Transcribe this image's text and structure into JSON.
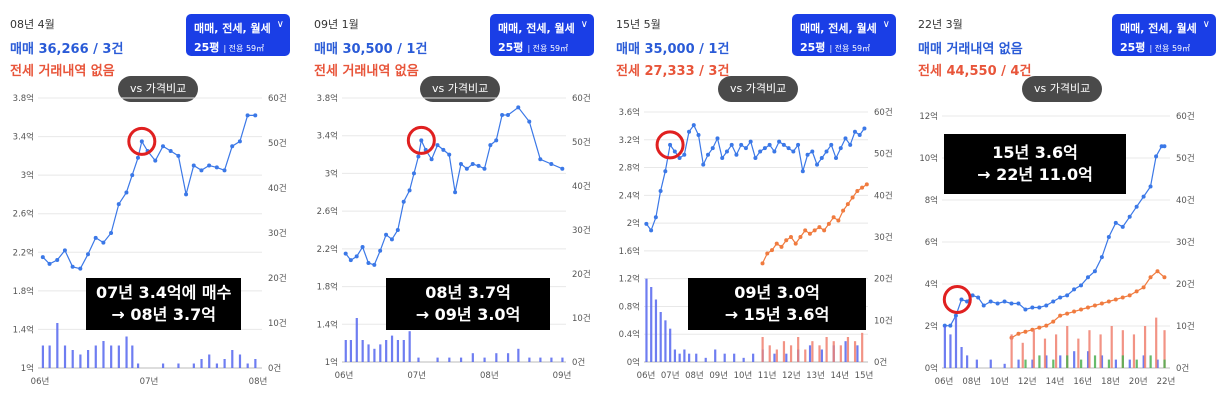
{
  "colors": {
    "sale": "#3b78e7",
    "lease": "#f07b3f",
    "select_bg": "#1a3ee6",
    "highlight": "#e02020",
    "vol_sale": "#5566ee",
    "vol_lease": "#f08070",
    "vol_green": "#4caf50"
  },
  "panels": [
    {
      "date": "08년 4월",
      "sale_text": "매매 36,266 / 3건",
      "lease_text": "전세 거래내역 없음",
      "select_line1": "매매, 전세, 월세",
      "select_line2": "25평",
      "select_sub": "| 전용 59㎡",
      "select_arrow": "∨",
      "vs_label": "vs 가격비교",
      "note_line1": "07년 3.4억에 매수",
      "note_line2": "→ 08년 3.7억"
    },
    {
      "date": "09년 1월",
      "sale_text": "매매 30,500 / 1건",
      "lease_text": "전세 거래내역 없음",
      "select_line1": "매매, 전세, 월세",
      "select_line2": "25평",
      "select_sub": "| 전용 59㎡",
      "select_arrow": "∨",
      "vs_label": "vs 가격비교",
      "note_line1": "08년 3.7억",
      "note_line2": "→ 09년 3.0억"
    },
    {
      "date": "15년 5월",
      "sale_text": "매매 35,000 / 1건",
      "lease_text": "전세 27,333 / 3건",
      "select_line1": "매매, 전세, 월세",
      "select_line2": "25평",
      "select_sub": "| 전용 59㎡",
      "select_arrow": "∨",
      "vs_label": "vs 가격비교",
      "note_line1": "09년 3.0억",
      "note_line2": "→ 15년 3.6억"
    },
    {
      "date": "22년 3월",
      "sale_text": "매매 거래내역 없음",
      "lease_text": "전세 44,550 / 4건",
      "select_line1": "매매, 전세, 월세",
      "select_line2": "25평",
      "select_sub": "| 전용 59㎡",
      "select_arrow": "∨",
      "vs_label": "vs 가격비교",
      "note_line1": "15년 3.6억",
      "note_line2": "→ 22년 11.0억"
    }
  ],
  "chart_data": [
    {
      "type": "line",
      "ylabel_unit": "억",
      "y_ticks": [
        "1억",
        "1.4억",
        "1.8억",
        "2.2억",
        "2.6억",
        "3억",
        "3.4억",
        "3.8억"
      ],
      "ylim": [
        1,
        3.8
      ],
      "y2_ticks": [
        "0건",
        "10건",
        "20건",
        "30건",
        "40건",
        "50건",
        "60건"
      ],
      "y2lim": [
        0,
        60
      ],
      "x_ticks": [
        "06년",
        "07년",
        "08년"
      ],
      "xlim": [
        2006.0,
        2008.33
      ],
      "highlight": [
        2007.08,
        3.35
      ],
      "series": [
        {
          "kind": "sale",
          "x": [
            2006.05,
            2006.12,
            2006.2,
            2006.28,
            2006.36,
            2006.44,
            2006.52,
            2006.6,
            2006.68,
            2006.76,
            2006.84,
            2006.92,
            2006.98,
            2007.04,
            2007.08,
            2007.14,
            2007.22,
            2007.3,
            2007.38,
            2007.46,
            2007.54,
            2007.62,
            2007.7,
            2007.78,
            2007.86,
            2007.94,
            2008.02,
            2008.1,
            2008.18,
            2008.26
          ],
          "y": [
            2.15,
            2.08,
            2.12,
            2.22,
            2.05,
            2.03,
            2.18,
            2.35,
            2.3,
            2.4,
            2.7,
            2.82,
            3.0,
            3.18,
            3.35,
            3.25,
            3.15,
            3.3,
            3.25,
            3.2,
            2.8,
            3.1,
            3.05,
            3.1,
            3.08,
            3.05,
            3.3,
            3.35,
            3.62,
            3.62
          ]
        },
        {
          "kind": "vol_sale",
          "x": [
            2006.05,
            2006.12,
            2006.2,
            2006.28,
            2006.36,
            2006.44,
            2006.52,
            2006.6,
            2006.68,
            2006.76,
            2006.84,
            2006.92,
            2006.98,
            2007.04,
            2007.3,
            2007.46,
            2007.62,
            2007.7,
            2007.78,
            2007.86,
            2007.94,
            2008.02,
            2008.1,
            2008.18,
            2008.26
          ],
          "y": [
            5,
            5,
            10,
            5,
            4,
            3,
            4,
            5,
            6,
            5,
            5,
            7,
            5,
            1,
            1,
            1,
            1,
            2,
            3,
            1,
            2,
            4,
            3,
            1,
            2
          ]
        }
      ]
    },
    {
      "type": "line",
      "ylabel_unit": "억",
      "y_ticks": [
        "1억",
        "1.4억",
        "1.8억",
        "2.2억",
        "2.6억",
        "3억",
        "3.4억",
        "3.8억"
      ],
      "ylim": [
        1,
        3.8
      ],
      "y2_ticks": [
        "0건",
        "10건",
        "20건",
        "30건",
        "40건",
        "50건",
        "60건"
      ],
      "y2lim": [
        0,
        60
      ],
      "x_ticks": [
        "06년",
        "07년",
        "08년",
        "09년"
      ],
      "xlim": [
        2006.0,
        2009.05
      ],
      "highlight": [
        2007.08,
        3.35
      ],
      "series": [
        {
          "kind": "sale",
          "x": [
            2006.05,
            2006.12,
            2006.2,
            2006.28,
            2006.36,
            2006.44,
            2006.52,
            2006.6,
            2006.68,
            2006.76,
            2006.84,
            2006.92,
            2006.98,
            2007.04,
            2007.08,
            2007.14,
            2007.22,
            2007.3,
            2007.38,
            2007.46,
            2007.54,
            2007.62,
            2007.7,
            2007.78,
            2007.86,
            2007.94,
            2008.02,
            2008.1,
            2008.18,
            2008.26,
            2008.4,
            2008.55,
            2008.7,
            2008.85,
            2009.0
          ],
          "y": [
            2.15,
            2.08,
            2.12,
            2.22,
            2.05,
            2.03,
            2.18,
            2.35,
            2.3,
            2.4,
            2.7,
            2.82,
            3.0,
            3.18,
            3.35,
            3.25,
            3.15,
            3.3,
            3.25,
            3.2,
            2.8,
            3.1,
            3.05,
            3.1,
            3.08,
            3.05,
            3.3,
            3.35,
            3.62,
            3.62,
            3.7,
            3.55,
            3.15,
            3.1,
            3.05
          ]
        },
        {
          "kind": "vol_sale",
          "x": [
            2006.05,
            2006.12,
            2006.2,
            2006.28,
            2006.36,
            2006.44,
            2006.52,
            2006.6,
            2006.68,
            2006.76,
            2006.84,
            2006.92,
            2007.04,
            2007.3,
            2007.46,
            2007.62,
            2007.78,
            2007.94,
            2008.1,
            2008.26,
            2008.4,
            2008.55,
            2008.7,
            2008.85,
            2009.0
          ],
          "y": [
            5,
            5,
            10,
            5,
            4,
            3,
            4,
            5,
            6,
            5,
            5,
            7,
            1,
            1,
            1,
            1,
            2,
            1,
            2,
            2,
            3,
            1,
            1,
            1,
            1
          ]
        }
      ]
    },
    {
      "type": "line",
      "ylabel_unit": "억",
      "y_ticks": [
        "0억",
        "0.4억",
        "0.8억",
        "1.2억",
        "1.6억",
        "2억",
        "2.4억",
        "2.8억",
        "3.2억",
        "3.6억"
      ],
      "ylim": [
        0,
        3.8
      ],
      "y2_ticks": [
        "0건",
        "10건",
        "20건",
        "30건",
        "40건",
        "50건",
        "60건"
      ],
      "y2lim": [
        0,
        60
      ],
      "x_ticks": [
        "06년",
        "07년",
        "08년",
        "09년",
        "10년",
        "11년",
        "12년",
        "13년",
        "14년",
        "15년"
      ],
      "xlim": [
        2006.0,
        2015.45
      ],
      "highlight": [
        2007.1,
        3.3
      ],
      "series": [
        {
          "kind": "sale",
          "x": [
            2006.1,
            2006.3,
            2006.5,
            2006.7,
            2006.9,
            2007.1,
            2007.3,
            2007.5,
            2007.7,
            2007.9,
            2008.1,
            2008.3,
            2008.5,
            2008.7,
            2008.9,
            2009.1,
            2009.3,
            2009.5,
            2009.7,
            2009.9,
            2010.1,
            2010.3,
            2010.5,
            2010.7,
            2010.9,
            2011.1,
            2011.3,
            2011.5,
            2011.7,
            2011.9,
            2012.1,
            2012.3,
            2012.5,
            2012.7,
            2012.9,
            2013.1,
            2013.3,
            2013.5,
            2013.7,
            2013.9,
            2014.1,
            2014.3,
            2014.5,
            2014.7,
            2014.9,
            2015.1,
            2015.3
          ],
          "y": [
            2.1,
            2.0,
            2.2,
            2.6,
            2.9,
            3.3,
            3.2,
            3.1,
            3.15,
            3.5,
            3.6,
            3.45,
            3.0,
            3.15,
            3.25,
            3.4,
            3.1,
            3.2,
            3.3,
            3.15,
            3.3,
            3.25,
            3.35,
            3.1,
            3.2,
            3.25,
            3.3,
            3.2,
            3.35,
            3.3,
            3.25,
            3.2,
            3.3,
            2.9,
            3.15,
            3.2,
            3.0,
            3.1,
            3.2,
            3.3,
            3.1,
            3.25,
            3.4,
            3.3,
            3.5,
            3.45,
            3.55
          ]
        },
        {
          "kind": "lease",
          "x": [
            2011.0,
            2011.2,
            2011.4,
            2011.6,
            2011.8,
            2012.0,
            2012.2,
            2012.4,
            2012.6,
            2012.8,
            2013.0,
            2013.2,
            2013.4,
            2013.6,
            2013.8,
            2014.0,
            2014.2,
            2014.4,
            2014.6,
            2014.8,
            2015.0,
            2015.2,
            2015.4
          ],
          "y": [
            1.5,
            1.65,
            1.7,
            1.8,
            1.75,
            1.85,
            1.9,
            1.8,
            1.9,
            2.0,
            1.95,
            2.0,
            2.05,
            2.0,
            2.1,
            2.2,
            2.15,
            2.3,
            2.4,
            2.5,
            2.6,
            2.65,
            2.7
          ]
        },
        {
          "kind": "vol_sale",
          "x": [
            2006.1,
            2006.3,
            2006.5,
            2006.7,
            2006.9,
            2007.1,
            2007.3,
            2007.5,
            2007.7,
            2007.9,
            2008.2,
            2008.6,
            2009.0,
            2009.4,
            2009.8,
            2010.2,
            2010.6,
            2011.0,
            2011.5,
            2012.0,
            2012.5,
            2013.0,
            2013.5,
            2014.0,
            2014.5,
            2015.0
          ],
          "y": [
            20,
            18,
            15,
            12,
            10,
            8,
            3,
            2,
            3,
            2,
            2,
            1,
            3,
            2,
            2,
            1,
            2,
            3,
            2,
            2,
            3,
            4,
            3,
            4,
            5,
            4
          ]
        },
        {
          "kind": "vol_lease",
          "x": [
            2011.0,
            2011.3,
            2011.6,
            2011.9,
            2012.2,
            2012.5,
            2012.8,
            2013.1,
            2013.4,
            2013.7,
            2014.0,
            2014.3,
            2014.6,
            2014.9,
            2015.2
          ],
          "y": [
            6,
            4,
            3,
            5,
            4,
            6,
            3,
            5,
            4,
            6,
            5,
            4,
            6,
            5,
            7
          ]
        }
      ]
    },
    {
      "type": "line",
      "ylabel_unit": "억",
      "y_ticks": [
        "0억",
        "2억",
        "4억",
        "6억",
        "8억",
        "10억",
        "12억"
      ],
      "ylim": [
        0,
        12.5
      ],
      "y2_ticks": [
        "0건",
        "10건",
        "20건",
        "30건",
        "40건",
        "50건",
        "60건"
      ],
      "y2lim": [
        0,
        60
      ],
      "x_ticks": [
        "06년",
        "08년",
        "10년",
        "12년",
        "14년",
        "16년",
        "18년",
        "20년",
        "22년"
      ],
      "xlim": [
        2006.0,
        2022.4
      ],
      "highlight": [
        2007.1,
        3.4
      ],
      "series": [
        {
          "kind": "sale",
          "x": [
            2006.2,
            2006.6,
            2007.0,
            2007.4,
            2007.8,
            2008.2,
            2008.6,
            2009.0,
            2009.5,
            2010.0,
            2010.5,
            2011.0,
            2011.5,
            2012.0,
            2012.5,
            2013.0,
            2013.5,
            2014.0,
            2014.5,
            2015.0,
            2015.5,
            2016.0,
            2016.5,
            2017.0,
            2017.5,
            2018.0,
            2018.5,
            2019.0,
            2019.5,
            2020.0,
            2020.5,
            2021.0,
            2021.4,
            2021.8,
            2022.0
          ],
          "y": [
            2.1,
            2.1,
            2.6,
            3.4,
            3.3,
            3.6,
            3.5,
            3.1,
            3.3,
            3.2,
            3.3,
            3.2,
            3.2,
            2.9,
            3.0,
            3.0,
            3.1,
            3.3,
            3.5,
            3.6,
            3.9,
            4.1,
            4.5,
            4.8,
            5.5,
            6.5,
            7.2,
            7.0,
            7.5,
            8.0,
            8.5,
            9.0,
            10.5,
            11.0,
            11.0
          ]
        },
        {
          "kind": "lease",
          "x": [
            2011.0,
            2011.5,
            2012.0,
            2012.5,
            2013.0,
            2013.5,
            2014.0,
            2014.5,
            2015.0,
            2015.5,
            2016.0,
            2016.5,
            2017.0,
            2017.5,
            2018.0,
            2018.5,
            2019.0,
            2019.5,
            2020.0,
            2020.5,
            2021.0,
            2021.5,
            2022.0
          ],
          "y": [
            1.5,
            1.7,
            1.8,
            1.9,
            2.0,
            2.1,
            2.3,
            2.6,
            2.7,
            2.8,
            2.9,
            3.0,
            3.1,
            3.2,
            3.3,
            3.4,
            3.5,
            3.6,
            3.8,
            4.0,
            4.5,
            4.8,
            4.5
          ]
        },
        {
          "kind": "vol_sale",
          "x": [
            2006.2,
            2006.6,
            2007.0,
            2007.4,
            2007.8,
            2008.5,
            2009.5,
            2010.5,
            2011.5,
            2012.5,
            2013.5,
            2014.5,
            2015.5,
            2016.5,
            2017.5,
            2018.5,
            2019.5,
            2020.5,
            2021.5
          ],
          "y": [
            10,
            8,
            12,
            5,
            3,
            2,
            2,
            1,
            2,
            2,
            3,
            3,
            4,
            4,
            3,
            2,
            2,
            3,
            2
          ]
        },
        {
          "kind": "vol_lease",
          "x": [
            2011.0,
            2011.8,
            2012.6,
            2013.4,
            2014.2,
            2015.0,
            2015.8,
            2016.6,
            2017.4,
            2018.2,
            2019.0,
            2019.8,
            2020.6,
            2021.4,
            2022.0
          ],
          "y": [
            8,
            6,
            9,
            7,
            8,
            10,
            7,
            9,
            8,
            10,
            9,
            8,
            10,
            12,
            9
          ]
        },
        {
          "kind": "vol_green",
          "x": [
            2012.0,
            2013.0,
            2014.0,
            2015.0,
            2016.0,
            2017.0,
            2018.0,
            2019.0,
            2020.0,
            2021.0,
            2022.0
          ],
          "y": [
            2,
            3,
            2,
            3,
            2,
            3,
            2,
            3,
            2,
            3,
            2
          ]
        }
      ]
    }
  ]
}
